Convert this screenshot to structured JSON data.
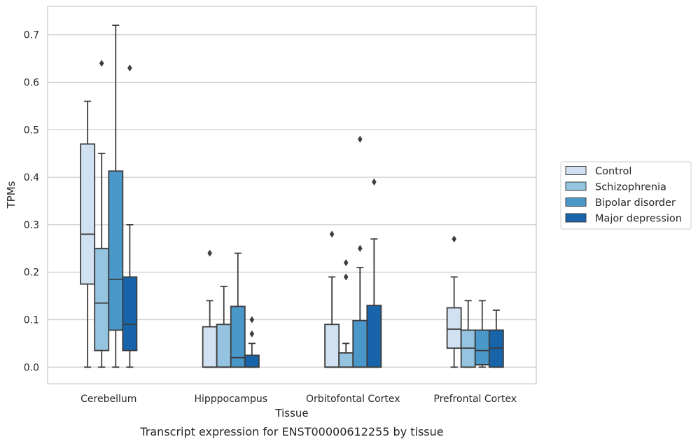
{
  "chart_data": {
    "type": "box",
    "xlabel": "Tissue",
    "ylabel": "TPMs",
    "caption": "Transcript expression for ENST00000612255 by tissue",
    "ylim": [
      -0.035,
      0.76
    ],
    "yticks": [
      "0.0",
      "0.1",
      "0.2",
      "0.3",
      "0.4",
      "0.5",
      "0.6",
      "0.7"
    ],
    "ytick_values": [
      0,
      0.1,
      0.2,
      0.3,
      0.4,
      0.5,
      0.6,
      0.7
    ],
    "grid": "horizontal",
    "legend_position": "right",
    "categories": [
      "Cerebellum",
      "Hipppocampus",
      "Orbitofontal Cortex",
      "Prefrontal Cortex"
    ],
    "series": [
      {
        "name": "Control",
        "color": "#d0e1f2",
        "boxes": [
          {
            "whislo": 0,
            "q1": 0.175,
            "med": 0.28,
            "q3": 0.47,
            "whishi": 0.56,
            "fliers": []
          },
          {
            "whislo": 0,
            "q1": 0,
            "med": 0,
            "q3": 0.085,
            "whishi": 0.14,
            "fliers": [
              0.24
            ]
          },
          {
            "whislo": 0,
            "q1": 0,
            "med": 0,
            "q3": 0.09,
            "whishi": 0.19,
            "fliers": [
              0.28
            ]
          },
          {
            "whislo": 0,
            "q1": 0.04,
            "med": 0.08,
            "q3": 0.125,
            "whishi": 0.19,
            "fliers": [
              0.27
            ]
          }
        ]
      },
      {
        "name": "Schizophrenia",
        "color": "#94c4df",
        "boxes": [
          {
            "whislo": 0,
            "q1": 0.035,
            "med": 0.135,
            "q3": 0.25,
            "whishi": 0.45,
            "fliers": [
              0.64
            ]
          },
          {
            "whislo": 0,
            "q1": 0,
            "med": 0,
            "q3": 0.09,
            "whishi": 0.17,
            "fliers": []
          },
          {
            "whislo": 0,
            "q1": 0,
            "med": 0,
            "q3": 0.03,
            "whishi": 0.05,
            "fliers": [
              0.19,
              0.22
            ]
          },
          {
            "whislo": 0,
            "q1": 0,
            "med": 0.04,
            "q3": 0.078,
            "whishi": 0.14,
            "fliers": []
          }
        ]
      },
      {
        "name": "Bipolar disorder",
        "color": "#4a98c9",
        "boxes": [
          {
            "whislo": 0,
            "q1": 0.078,
            "med": 0.185,
            "q3": 0.413,
            "whishi": 0.72,
            "fliers": []
          },
          {
            "whislo": 0,
            "q1": 0,
            "med": 0.02,
            "q3": 0.128,
            "whishi": 0.24,
            "fliers": []
          },
          {
            "whislo": 0,
            "q1": 0,
            "med": 0,
            "q3": 0.098,
            "whishi": 0.21,
            "fliers": [
              0.25,
              0.48
            ]
          },
          {
            "whislo": 0,
            "q1": 0.005,
            "med": 0.035,
            "q3": 0.078,
            "whishi": 0.14,
            "fliers": []
          }
        ]
      },
      {
        "name": "Major depression",
        "color": "#1764ab",
        "boxes": [
          {
            "whislo": 0,
            "q1": 0.035,
            "med": 0.09,
            "q3": 0.19,
            "whishi": 0.3,
            "fliers": [
              0.63
            ]
          },
          {
            "whislo": 0,
            "q1": 0,
            "med": 0,
            "q3": 0.025,
            "whishi": 0.05,
            "fliers": [
              0.07,
              0.1
            ]
          },
          {
            "whislo": 0,
            "q1": 0,
            "med": 0,
            "q3": 0.13,
            "whishi": 0.27,
            "fliers": [
              0.39
            ]
          },
          {
            "whislo": 0,
            "q1": 0,
            "med": 0.04,
            "q3": 0.078,
            "whishi": 0.12,
            "fliers": []
          }
        ]
      }
    ]
  }
}
